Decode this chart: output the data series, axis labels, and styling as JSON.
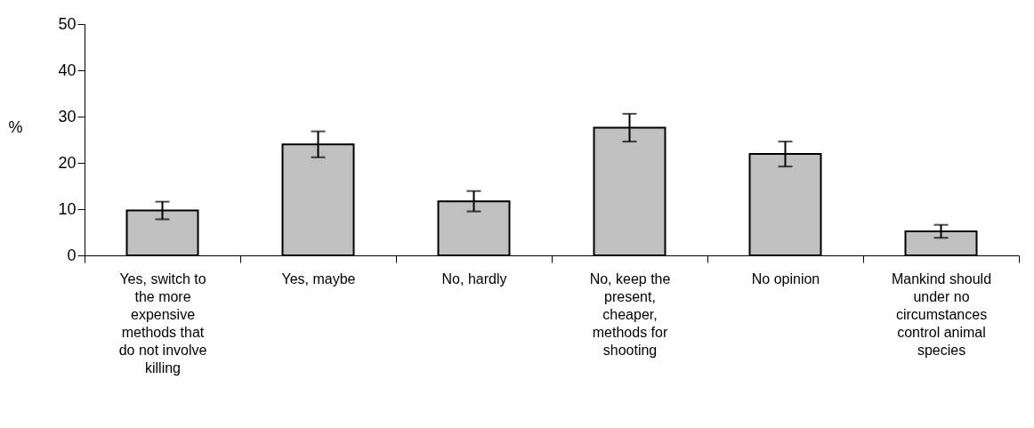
{
  "chart_data": {
    "type": "bar",
    "ylabel": "%",
    "categories": [
      "Yes, switch to the more expensive methods that do not involve killing",
      "Yes, maybe",
      "No, hardly",
      "No, keep the present, cheaper, methods for shooting",
      "No opinion",
      "Mankind should under no circumstances control animal species"
    ],
    "values": [
      9.7,
      24.0,
      11.7,
      27.6,
      21.9,
      5.2
    ],
    "errors": [
      1.9,
      2.8,
      2.2,
      3.0,
      2.7,
      1.4
    ],
    "color": "#c0c0c0",
    "ylim": [
      0,
      50
    ],
    "yticks": [
      0,
      10,
      20,
      30,
      40,
      50
    ],
    "grid": false
  }
}
